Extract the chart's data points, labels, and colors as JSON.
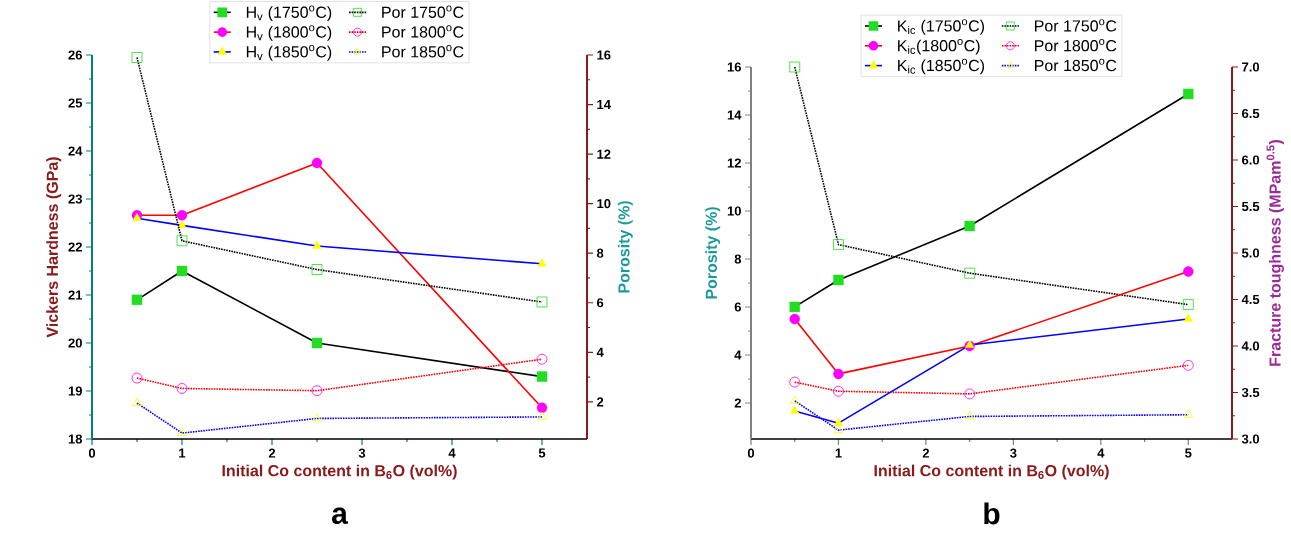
{
  "chart_data": [
    {
      "type": "line",
      "x": [
        0.5,
        1,
        2.5,
        5
      ],
      "xlim": [
        0,
        5.5
      ],
      "xticks": [
        0,
        1,
        2,
        3,
        4,
        5
      ],
      "ylim": [
        18,
        26
      ],
      "yticks": [
        18,
        19,
        20,
        21,
        22,
        23,
        24,
        25,
        26
      ],
      "y2lim": [
        0.5,
        16
      ],
      "y2ticks": [
        2,
        4,
        6,
        8,
        10,
        12,
        14,
        16
      ],
      "xlabel": "Initial Co content in B$_{6}$O (vol%)",
      "ylabel": "Vickers Hardness (GPa)",
      "y2label": "Porosity (%)",
      "legend": "top",
      "annotations": [
        "a"
      ],
      "series": [
        {
          "name": "H$_{v}$ (1750$^{o}$C)",
          "color": "#000000",
          "colors": [
            "#22dd22",
            "#22dd22",
            "#22dd22",
            "#22dd22"
          ],
          "marker": "square",
          "line_style": "solid",
          "values": [
            20.9,
            21.5,
            20.0,
            19.3
          ]
        },
        {
          "name": "H$_{v}$ (1800$^{o}$C)",
          "color": "#ff0000",
          "colors": [
            "#ff00ff",
            "#ff00ff",
            "#ff00ff",
            "#ff00ff"
          ],
          "marker": "circle",
          "line_style": "solid",
          "values": [
            22.66,
            22.66,
            23.75,
            18.65
          ]
        },
        {
          "name": "H$_{v}$ (1850$^{o}$C)",
          "color": "#0000ff",
          "colors": [
            "#ffff00",
            "#ffff00",
            "#ffff00",
            "#ffff00"
          ],
          "marker": "triangle",
          "line_style": "solid",
          "values": [
            22.6,
            22.45,
            22.02,
            21.65
          ]
        },
        {
          "name": "Por 1750$^{o}$C",
          "color": "#000000",
          "colors": [
            "#22dd22",
            "#22dd22",
            "#22dd22",
            "#22dd22"
          ],
          "marker": "square",
          "line_style": "dotted",
          "axis": "y2",
          "values": [
            15.9,
            8.5,
            7.34,
            6.03
          ]
        },
        {
          "name": "Por 1800$^{o}$C",
          "color": "#ff0000",
          "colors": [
            "#ff00ff",
            "#ff00ff",
            "#ff00ff",
            "#ff00ff"
          ],
          "marker": "circle",
          "line_style": "dotted",
          "axis": "y2",
          "values": [
            2.96,
            2.54,
            2.45,
            3.72
          ]
        },
        {
          "name": "Por 1850$^{o}$C",
          "color": "#0000ff",
          "colors": [
            "#ffff00",
            "#ffff00",
            "#ffff00",
            "#ffff00"
          ],
          "marker": "triangle",
          "line_style": "dotted",
          "axis": "y2",
          "values": [
            1.95,
            0.74,
            1.33,
            1.39
          ]
        }
      ]
    },
    {
      "type": "line",
      "x": [
        0.5,
        1,
        2.5,
        5
      ],
      "xlim": [
        0,
        5.5
      ],
      "xticks": [
        0,
        1,
        2,
        3,
        4,
        5
      ],
      "ylim": [
        0.5,
        16
      ],
      "yticks": [
        2,
        4,
        6,
        8,
        10,
        12,
        14,
        16
      ],
      "y2lim": [
        3,
        7
      ],
      "y2ticks": [
        {
          "value": 3,
          "label": "3.0"
        },
        3.5,
        {
          "value": 4,
          "label": "4.0"
        },
        4.5,
        {
          "value": 5,
          "label": "5.0"
        },
        5.5,
        {
          "value": 6,
          "label": "6.0"
        },
        6.5,
        {
          "value": 7,
          "label": "7.0"
        }
      ],
      "xlabel": "Initial Co content in B$_{6}$O (vol%)",
      "ylabel": "Porosity (%)",
      "y2label": "Fracture toughness (MPam$^{0.5}$)",
      "legend": "top",
      "annotations": [
        "b"
      ],
      "series": [
        {
          "name": "K$_{ic}$ (1750$^{o}$C)",
          "color": "#000000",
          "colors": [
            "#22dd22",
            "#22dd22",
            "#22dd22",
            "#22dd22"
          ],
          "marker": "square",
          "line_style": "solid",
          "axis": "y2",
          "values": [
            4.42,
            4.71,
            5.29,
            6.71
          ]
        },
        {
          "name": "K$_{ic}$(1800$^{o}$C)",
          "color": "#ff0000",
          "colors": [
            "#ff00ff",
            "#ff00ff",
            "#ff00ff",
            "#ff00ff"
          ],
          "marker": "circle",
          "line_style": "solid",
          "axis": "y2",
          "values": [
            4.29,
            3.7,
            4.0,
            4.8
          ]
        },
        {
          "name": "K$_{ic}$ (1850$^{o}$C)",
          "color": "#0000ff",
          "colors": [
            "#ffff00",
            "#ffff00",
            "#ffff00",
            "#ffff00"
          ],
          "marker": "triangle",
          "line_style": "solid",
          "axis": "y2",
          "values": [
            3.3,
            3.17,
            4.01,
            4.29
          ]
        },
        {
          "name": "Por 1750$^{o}$C",
          "color": "#000000",
          "colors": [
            "#22dd22",
            "#22dd22",
            "#22dd22",
            "#22dd22"
          ],
          "marker": "square",
          "line_style": "dotted",
          "values": [
            16,
            8.6,
            7.41,
            6.1
          ]
        },
        {
          "name": "Por 1800$^{o}$C",
          "color": "#ff0000",
          "colors": [
            "#ff00ff",
            "#ff00ff",
            "#ff00ff",
            "#ff00ff"
          ],
          "marker": "circle",
          "line_style": "dotted",
          "values": [
            2.87,
            2.49,
            2.38,
            3.57
          ]
        },
        {
          "name": "Por 1850$^{o}$C",
          "color": "#0000ff",
          "colors": [
            "#ffff00",
            "#ffff00",
            "#ffff00",
            "#ffff00"
          ],
          "marker": "triangle",
          "line_style": "dotted",
          "values": [
            2.09,
            0.87,
            1.44,
            1.51
          ]
        }
      ]
    }
  ]
}
